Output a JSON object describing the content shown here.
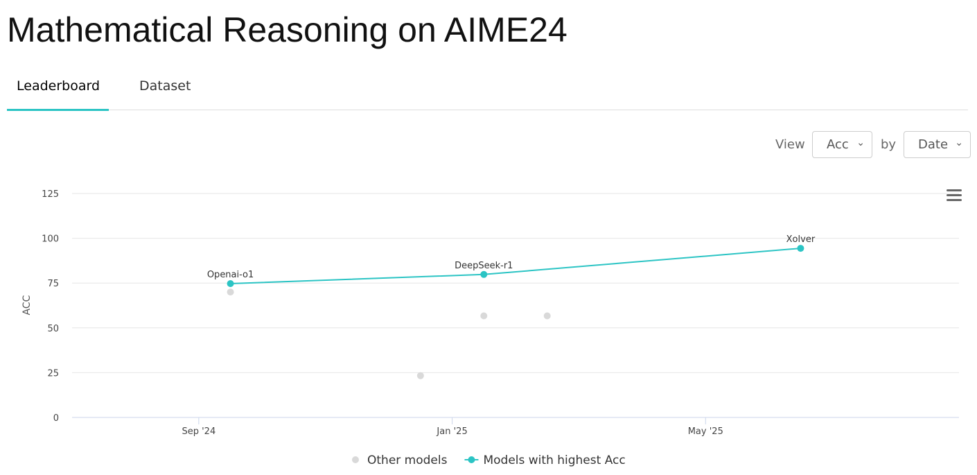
{
  "page": {
    "title": "Mathematical Reasoning on AIME24",
    "tabs": [
      "Leaderboard",
      "Dataset"
    ],
    "controls": {
      "view_label": "View",
      "metric": "Acc",
      "by_label": "by",
      "sort": "Date"
    }
  },
  "chart_data": {
    "type": "line",
    "y_label": "ACC",
    "x_format": "month",
    "xlim": [
      "2024-07",
      "2025-09"
    ],
    "xticks": [
      {
        "value": "2024-09",
        "label": "Sep '24"
      },
      {
        "value": "2025-01",
        "label": "Jan '25"
      },
      {
        "value": "2025-05",
        "label": "May '25"
      }
    ],
    "ylim": [
      0,
      125
    ],
    "yticks": [
      0,
      25,
      50,
      75,
      100,
      125
    ],
    "grid": true,
    "series": [
      {
        "name": "Other models",
        "type": "scatter",
        "color": "#d9d9d9",
        "x": [
          "2024-09",
          "2024-12",
          "2025-01",
          "2025-02"
        ],
        "values": [
          70,
          23.3,
          56.7,
          56.7
        ]
      },
      {
        "name": "Models with highest Acc",
        "type": "line",
        "color": "#2bc4c4",
        "x": [
          "2024-09",
          "2025-01",
          "2025-06"
        ],
        "values": [
          74.7,
          79.8,
          94.4
        ],
        "labels": [
          "Openai-o1",
          "DeepSeek-r1",
          "Xolver"
        ]
      }
    ]
  }
}
